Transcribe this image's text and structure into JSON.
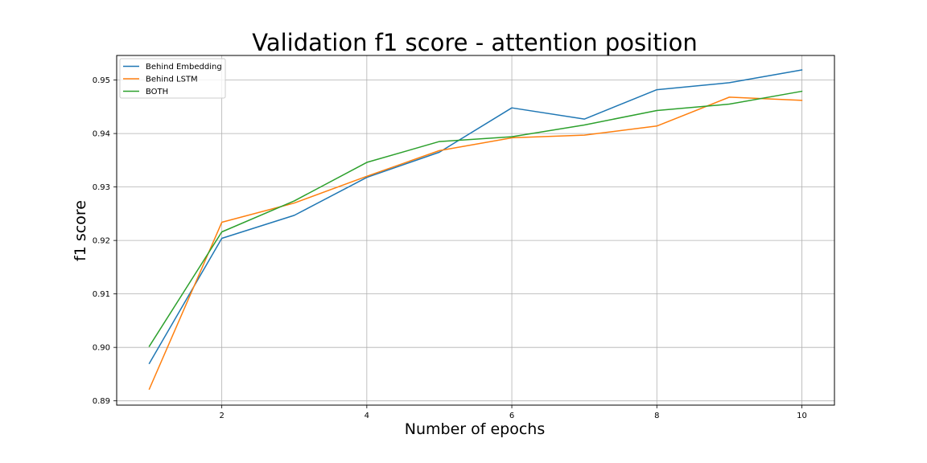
{
  "chart_data": {
    "type": "line",
    "title": "Validation f1 score - attention position",
    "xlabel": "Number of epochs",
    "ylabel": "f1 score",
    "xlim": [
      0.55,
      10.45
    ],
    "ylim": [
      0.8892,
      0.9546
    ],
    "x_ticks": [
      2,
      4,
      6,
      8,
      10
    ],
    "y_ticks": [
      0.89,
      0.9,
      0.91,
      0.92,
      0.93,
      0.94,
      0.95
    ],
    "y_tick_labels": [
      "0.89",
      "0.90",
      "0.91",
      "0.92",
      "0.93",
      "0.94",
      "0.95"
    ],
    "grid": true,
    "legend_position": "top-left",
    "x": [
      1,
      2,
      3,
      4,
      5,
      6,
      7,
      8,
      9,
      10
    ],
    "series": [
      {
        "name": "Behind Embedding",
        "color": "#1f77b4",
        "values": [
          0.897,
          0.9204,
          0.9247,
          0.9318,
          0.9365,
          0.9448,
          0.9427,
          0.9482,
          0.9495,
          0.9519
        ]
      },
      {
        "name": "Behind LSTM",
        "color": "#ff7f0e",
        "values": [
          0.8922,
          0.9234,
          0.927,
          0.932,
          0.9368,
          0.9392,
          0.9397,
          0.9414,
          0.9468,
          0.9462
        ]
      },
      {
        "name": "BOTH",
        "color": "#2ca02c",
        "values": [
          0.9002,
          0.9216,
          0.9274,
          0.9346,
          0.9385,
          0.9394,
          0.9416,
          0.9443,
          0.9455,
          0.9479
        ]
      }
    ]
  }
}
